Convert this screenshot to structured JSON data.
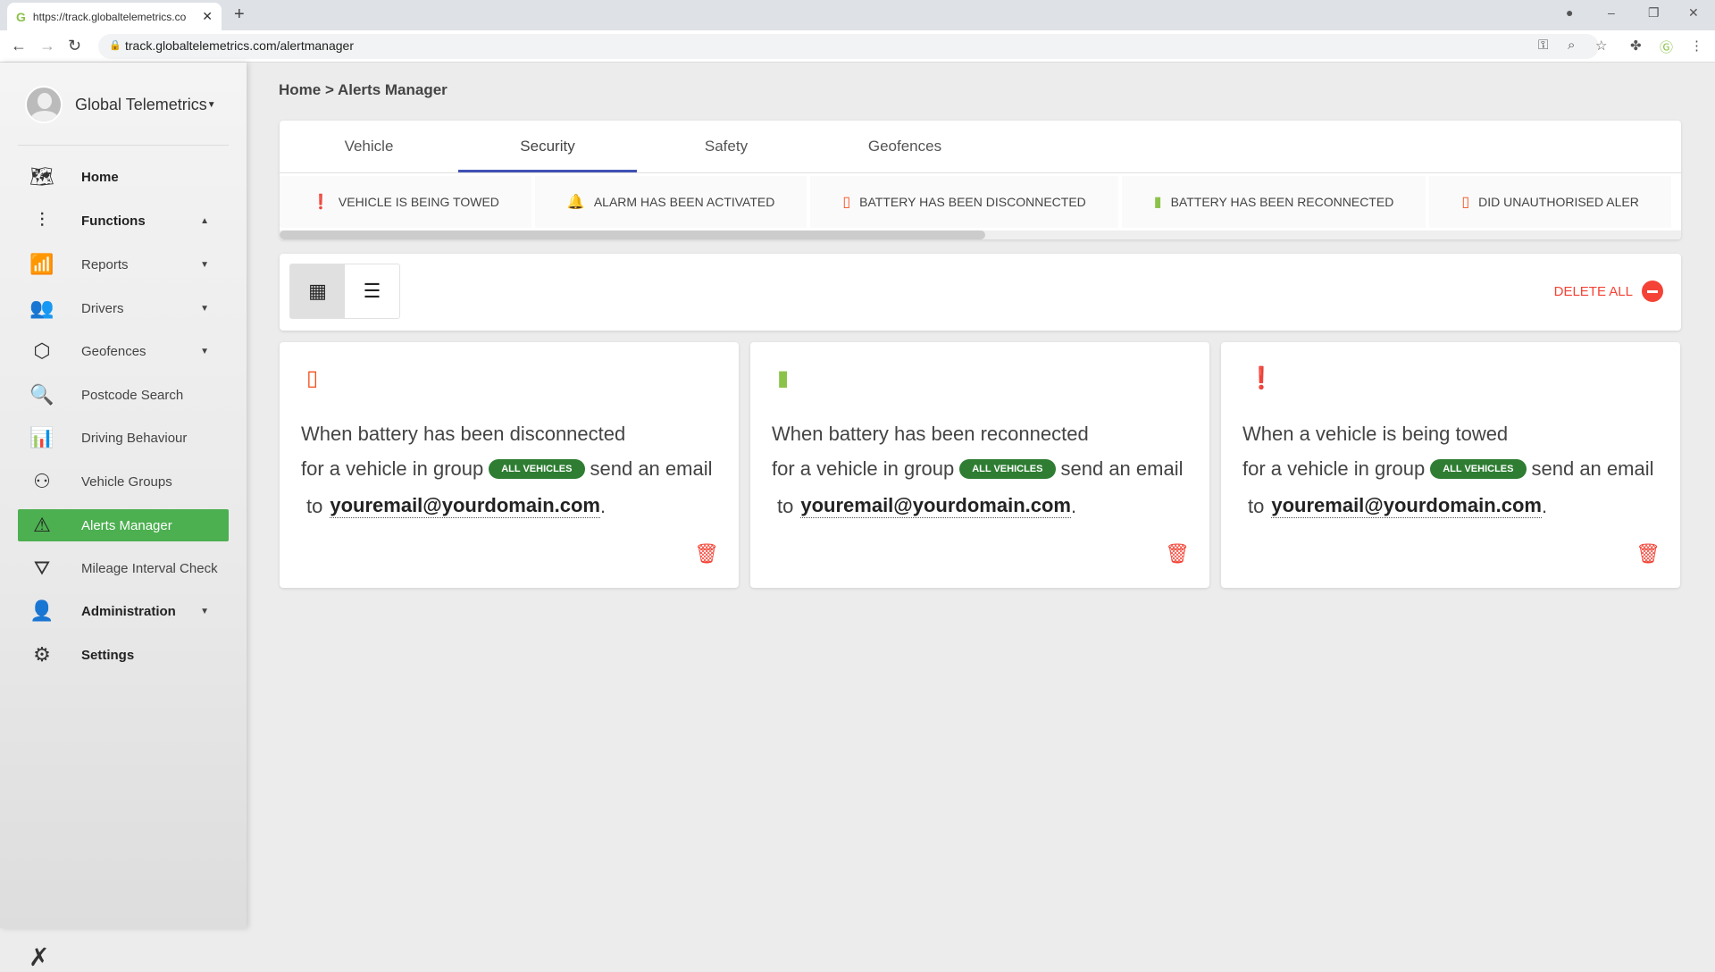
{
  "browser": {
    "tab_title": "https://track.globaltelemetrics.co",
    "url": "track.globaltelemetrics.com/alertmanager"
  },
  "sidebar": {
    "user": "Global Telemetrics",
    "items": [
      {
        "label": "Home",
        "icon": "map-icon",
        "bold": true
      },
      {
        "label": "Functions",
        "icon": "sliders-icon",
        "bold": true,
        "caret": "▲"
      },
      {
        "label": "Reports",
        "icon": "chart-icon",
        "caret": "▼"
      },
      {
        "label": "Drivers",
        "icon": "users-icon",
        "caret": "▼"
      },
      {
        "label": "Geofences",
        "icon": "polygon-icon",
        "caret": "▼"
      },
      {
        "label": "Postcode Search",
        "icon": "search-icon"
      },
      {
        "label": "Driving Behaviour",
        "icon": "bar-chart-icon"
      },
      {
        "label": "Vehicle Groups",
        "icon": "group-icon"
      },
      {
        "label": "Alerts Manager",
        "icon": "alert-icon",
        "active": true
      },
      {
        "label": "Mileage Interval Check",
        "icon": "road-icon"
      },
      {
        "label": "Administration",
        "icon": "admin-icon",
        "bold": true,
        "caret": "▼"
      },
      {
        "label": "Settings",
        "icon": "gears-icon",
        "bold": true
      }
    ]
  },
  "breadcrumb": "Home > Alerts Manager",
  "tabs": [
    {
      "label": "Vehicle"
    },
    {
      "label": "Security",
      "active": true
    },
    {
      "label": "Safety"
    },
    {
      "label": "Geofences"
    }
  ],
  "alert_types": [
    {
      "label": "VEHICLE IS BEING TOWED",
      "icon": "exclamation-icon",
      "color": "#f4511e"
    },
    {
      "label": "ALARM HAS BEEN ACTIVATED",
      "icon": "bell-icon",
      "color": "#f4511e"
    },
    {
      "label": "BATTERY HAS BEEN DISCONNECTED",
      "icon": "battery-question-icon",
      "color": "#f4511e"
    },
    {
      "label": "BATTERY HAS BEEN RECONNECTED",
      "icon": "battery-charging-icon",
      "color": "#8bc34a"
    },
    {
      "label": "DID UNAUTHORISED ALER",
      "icon": "door-icon",
      "color": "#f4511e"
    }
  ],
  "toolbar": {
    "delete_all": "DELETE ALL"
  },
  "alerts": [
    {
      "title": "When battery has been disconnected",
      "icon": "battery-question-icon",
      "color": "#f4511e",
      "prefix": "for a vehicle in group",
      "group": "ALL VEHICLES",
      "action": "send an email",
      "to": "to",
      "email": "youremail@yourdomain.com"
    },
    {
      "title": "When battery has been reconnected",
      "icon": "battery-charging-icon",
      "color": "#8bc34a",
      "prefix": "for a vehicle in group",
      "group": "ALL VEHICLES",
      "action": "send an email",
      "to": "to",
      "email": "youremail@yourdomain.com"
    },
    {
      "title": "When a vehicle is being towed",
      "icon": "exclamation-icon",
      "color": "#f4511e",
      "prefix": "for a vehicle in group",
      "group": "ALL VEHICLES",
      "action": "send an email",
      "to": "to",
      "email": "youremail@yourdomain.com"
    }
  ]
}
